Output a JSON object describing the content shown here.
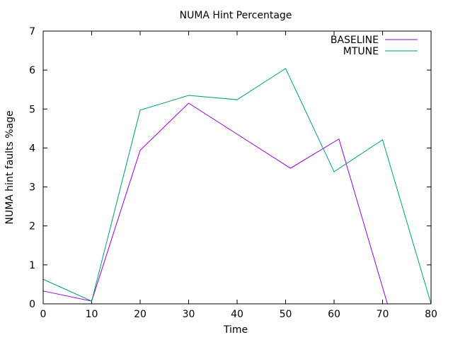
{
  "chart_data": {
    "type": "line",
    "title": "NUMA Hint Percentage",
    "xlabel": "Time",
    "ylabel": "NUMA hint faults %age",
    "xlim": [
      0,
      80
    ],
    "ylim": [
      0,
      7
    ],
    "xticks": [
      "0",
      "10",
      "20",
      "30",
      "40",
      "50",
      "60",
      "70",
      "80"
    ],
    "yticks": [
      "0",
      "1",
      "2",
      "3",
      "4",
      "5",
      "6",
      "7"
    ],
    "legend_position": "top-right",
    "grid": false,
    "series": [
      {
        "name": "BASELINE",
        "color": "#9400d3",
        "x": [
          0,
          10,
          20,
          30,
          51,
          61,
          71
        ],
        "y": [
          0.33,
          0.07,
          3.94,
          5.15,
          3.48,
          4.23,
          0
        ]
      },
      {
        "name": "MTUNE",
        "color": "#009e73",
        "x": [
          0,
          10,
          20,
          30,
          40,
          50,
          60,
          70,
          80
        ],
        "y": [
          0.63,
          0.07,
          4.97,
          5.35,
          5.24,
          6.04,
          3.39,
          4.21,
          0
        ]
      }
    ]
  }
}
